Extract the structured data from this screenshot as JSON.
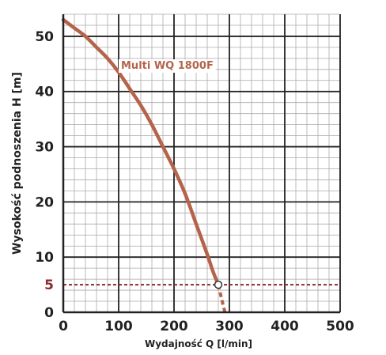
{
  "chart_data": {
    "type": "line",
    "xlabel": "Wydajność Q [l/min]",
    "ylabel": "Wysokość podnoszenia H [m]",
    "xlim": [
      0,
      500
    ],
    "ylim": [
      0,
      54
    ],
    "x_ticks": [
      "0",
      "100",
      "200",
      "300",
      "400",
      "500"
    ],
    "y_ticks": [
      "0",
      "10",
      "20",
      "30",
      "40",
      "50"
    ],
    "grid": true,
    "series": [
      {
        "name": "Multi WQ 1800F",
        "color": "#b5634a",
        "x": [
          0,
          20,
          40,
          60,
          80,
          100,
          120,
          140,
          160,
          180,
          200,
          220,
          240,
          260,
          270,
          280
        ],
        "y": [
          53,
          51.5,
          50,
          48,
          46,
          43.5,
          40.5,
          37.5,
          34,
          30,
          26,
          21.5,
          16,
          10.5,
          7.5,
          5
        ],
        "extension": {
          "x": [
            280,
            287,
            292
          ],
          "y": [
            5,
            2,
            0
          ],
          "style": "dashed"
        },
        "marker": {
          "x": 280,
          "y": 5
        }
      }
    ],
    "reference_line": {
      "y": 5,
      "label": "5",
      "color": "#8b2a2a",
      "style": "dashed"
    }
  }
}
